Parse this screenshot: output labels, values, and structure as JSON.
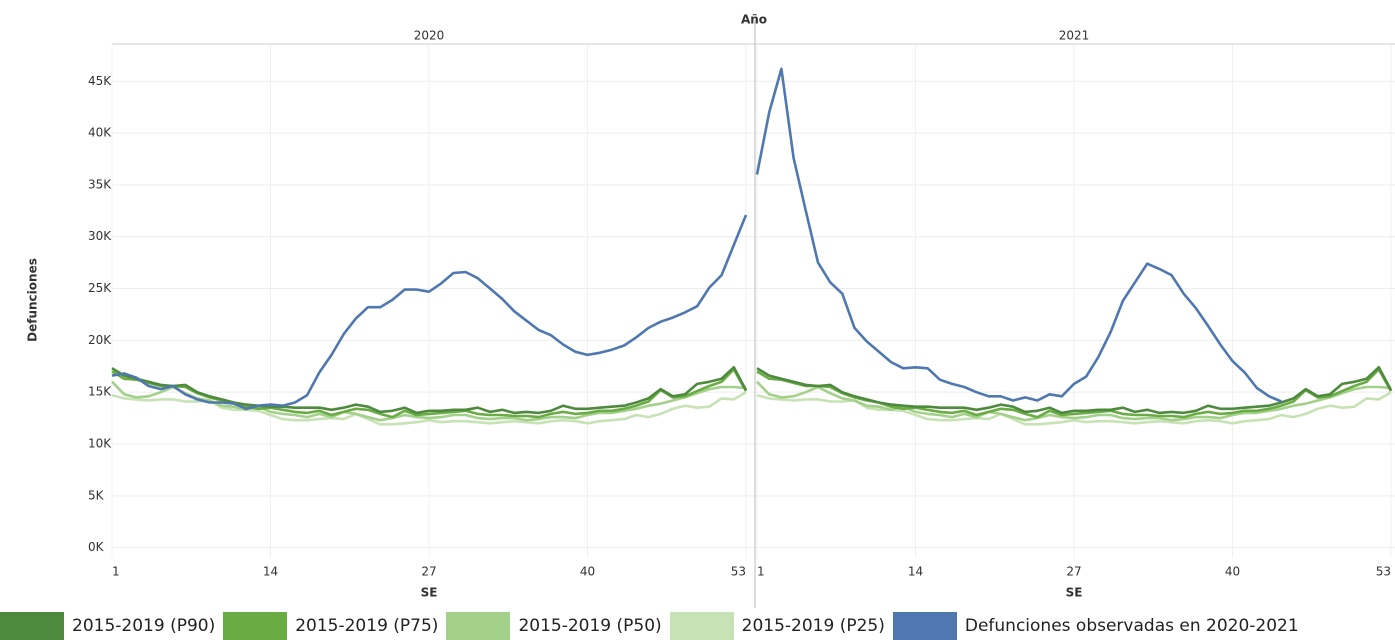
{
  "chart_data": {
    "type": "line",
    "title": "Año",
    "facets": [
      "2020",
      "2021"
    ],
    "y_label": "Defunciones",
    "x_label": "SE",
    "x": [
      1,
      2,
      3,
      4,
      5,
      6,
      7,
      8,
      9,
      10,
      11,
      12,
      13,
      14,
      15,
      16,
      17,
      18,
      19,
      20,
      21,
      22,
      23,
      24,
      25,
      26,
      27,
      28,
      29,
      30,
      31,
      32,
      33,
      34,
      35,
      36,
      37,
      38,
      39,
      40,
      41,
      42,
      43,
      44,
      45,
      46,
      47,
      48,
      49,
      50,
      51,
      52,
      53
    ],
    "xlim": [
      1,
      53
    ],
    "xticks": [
      1,
      14,
      27,
      40,
      53
    ],
    "ylim": [
      -1000,
      48500
    ],
    "yticks": [
      {
        "value": 0,
        "label": "0K"
      },
      {
        "value": 5000,
        "label": "5K"
      },
      {
        "value": 10000,
        "label": "10K"
      },
      {
        "value": 15000,
        "label": "15K"
      },
      {
        "value": 20000,
        "label": "20K"
      },
      {
        "value": 25000,
        "label": "25K"
      },
      {
        "value": 30000,
        "label": "30K"
      },
      {
        "value": 35000,
        "label": "35K"
      },
      {
        "value": 40000,
        "label": "40K"
      },
      {
        "value": 45000,
        "label": "45K"
      }
    ],
    "grid": true,
    "series": [
      {
        "name": "2015-2019 (P90)",
        "color": "#4e8a3e",
        "values": [
          [
            17300,
            16600,
            16300,
            16000,
            15700,
            15600,
            15700,
            15000,
            14600,
            14300,
            14000,
            13800,
            13700,
            13600,
            13600,
            13500,
            13500,
            13500,
            13300,
            13500,
            13800,
            13600,
            13100,
            13200,
            13500,
            13000,
            13200,
            13200,
            13300,
            13300,
            13500,
            13100,
            13300,
            13000,
            13100,
            13000,
            13200,
            13700,
            13400,
            13400,
            13500,
            13600,
            13700,
            14000,
            14400,
            15300,
            14600,
            14800,
            15800,
            16000,
            16300,
            17400,
            15200
          ],
          [
            17300,
            16600,
            16300,
            16000,
            15700,
            15600,
            15700,
            15000,
            14600,
            14300,
            14000,
            13800,
            13700,
            13600,
            13600,
            13500,
            13500,
            13500,
            13300,
            13500,
            13800,
            13600,
            13100,
            13200,
            13500,
            13000,
            13200,
            13200,
            13300,
            13300,
            13500,
            13100,
            13300,
            13000,
            13100,
            13000,
            13200,
            13700,
            13400,
            13400,
            13500,
            13600,
            13700,
            14000,
            14400,
            15300,
            14600,
            14800,
            15800,
            16000,
            16300,
            17400,
            15200
          ]
        ]
      },
      {
        "name": "2015-2019 (P75)",
        "color": "#6aac44",
        "values": [
          [
            17000,
            16300,
            16200,
            15900,
            15600,
            15600,
            15500,
            14900,
            14500,
            14200,
            14000,
            13600,
            13400,
            13500,
            13300,
            13100,
            13000,
            13200,
            12800,
            13100,
            13400,
            13300,
            12900,
            12600,
            13200,
            12800,
            12900,
            13000,
            13100,
            13200,
            12900,
            12800,
            12800,
            12700,
            12700,
            12600,
            12900,
            13100,
            12900,
            13000,
            13200,
            13200,
            13400,
            13700,
            14100,
            15200,
            14500,
            14600,
            15100,
            15600,
            16000,
            17200,
            15100
          ],
          [
            17000,
            16300,
            16200,
            15900,
            15600,
            15600,
            15500,
            14900,
            14500,
            14200,
            14000,
            13600,
            13400,
            13500,
            13300,
            13100,
            13000,
            13200,
            12800,
            13100,
            13400,
            13300,
            12900,
            12600,
            13200,
            12800,
            12900,
            13000,
            13100,
            13200,
            12900,
            12800,
            12800,
            12700,
            12700,
            12600,
            12900,
            13100,
            12900,
            13000,
            13200,
            13200,
            13400,
            13700,
            14100,
            15200,
            14500,
            14600,
            15100,
            15600,
            16000,
            17200,
            15100
          ]
        ]
      },
      {
        "name": "2015-2019 (P50)",
        "color": "#a3d08a",
        "values": [
          [
            16000,
            14800,
            14500,
            14600,
            15000,
            15500,
            14900,
            14400,
            14200,
            13700,
            13600,
            13300,
            13600,
            13100,
            12900,
            12800,
            12600,
            12900,
            12600,
            13100,
            12900,
            12600,
            12300,
            12500,
            12800,
            12600,
            12500,
            12600,
            12800,
            12800,
            12500,
            12400,
            12500,
            12500,
            12300,
            12400,
            12600,
            12600,
            12500,
            12800,
            13000,
            13000,
            13200,
            13400,
            13700,
            13900,
            14200,
            14500,
            14900,
            15300,
            15500,
            15500,
            15400
          ],
          [
            16000,
            14800,
            14500,
            14600,
            15000,
            15500,
            14900,
            14400,
            14200,
            13700,
            13600,
            13300,
            13600,
            13100,
            12900,
            12800,
            12600,
            12900,
            12600,
            13100,
            12900,
            12600,
            12300,
            12500,
            12800,
            12600,
            12500,
            12600,
            12800,
            12800,
            12500,
            12400,
            12500,
            12500,
            12300,
            12400,
            12600,
            12600,
            12500,
            12800,
            13000,
            13000,
            13200,
            13400,
            13700,
            13900,
            14200,
            14500,
            14900,
            15300,
            15500,
            15500,
            15400
          ]
        ]
      },
      {
        "name": "2015-2019 (P25)",
        "color": "#c7e2b4",
        "values": [
          [
            14700,
            14400,
            14300,
            14200,
            14300,
            14300,
            14100,
            14100,
            14200,
            13500,
            13300,
            13300,
            13200,
            12800,
            12400,
            12300,
            12300,
            12400,
            12500,
            12400,
            12900,
            12400,
            11900,
            11900,
            12000,
            12100,
            12300,
            12100,
            12200,
            12200,
            12100,
            12000,
            12100,
            12200,
            12100,
            12000,
            12200,
            12300,
            12200,
            12000,
            12200,
            12300,
            12400,
            12800,
            12600,
            12900,
            13400,
            13700,
            13500,
            13600,
            14400,
            14300,
            15000
          ],
          [
            14700,
            14400,
            14300,
            14200,
            14300,
            14300,
            14100,
            14100,
            14200,
            13500,
            13300,
            13300,
            13200,
            12800,
            12400,
            12300,
            12300,
            12400,
            12500,
            12400,
            12900,
            12400,
            11900,
            11900,
            12000,
            12100,
            12300,
            12100,
            12200,
            12200,
            12100,
            12000,
            12100,
            12200,
            12100,
            12000,
            12200,
            12300,
            12200,
            12000,
            12200,
            12300,
            12400,
            12800,
            12600,
            12900,
            13400,
            13700,
            13500,
            13600,
            14400,
            14300,
            15000
          ]
        ]
      },
      {
        "name": "Defunciones observadas en 2020-2021",
        "color": "#4f77b0",
        "values": [
          [
            16600,
            16800,
            16400,
            15600,
            15300,
            15600,
            14800,
            14300,
            14000,
            14000,
            13900,
            13400,
            13700,
            13800,
            13700,
            14000,
            14700,
            16900,
            18600,
            20600,
            22100,
            23200,
            23200,
            23900,
            24900,
            24900,
            24700,
            25500,
            26500,
            26600,
            26000,
            25000,
            24000,
            22800,
            21900,
            21000,
            20500,
            19600,
            18900,
            18600,
            18800,
            19100,
            19500,
            20300,
            21200,
            21800,
            22200,
            22700,
            23300,
            25100,
            26300,
            29200,
            32100
          ],
          [
            36000,
            42000,
            46200,
            37600,
            32500,
            27500,
            25600,
            24500,
            21200,
            19900,
            18900,
            17900,
            17300,
            17400,
            17300,
            16200,
            15800,
            15500,
            15000,
            14600,
            14600,
            14200,
            14500,
            14200,
            14800,
            14600,
            15800,
            16500,
            18400,
            20800,
            23800,
            25600,
            27400,
            26900,
            26300,
            24500,
            23100,
            21400,
            19600,
            18000,
            16900,
            15400,
            14600,
            14100,
            null,
            null,
            null,
            null,
            null,
            null,
            null,
            null,
            null
          ]
        ]
      }
    ]
  }
}
